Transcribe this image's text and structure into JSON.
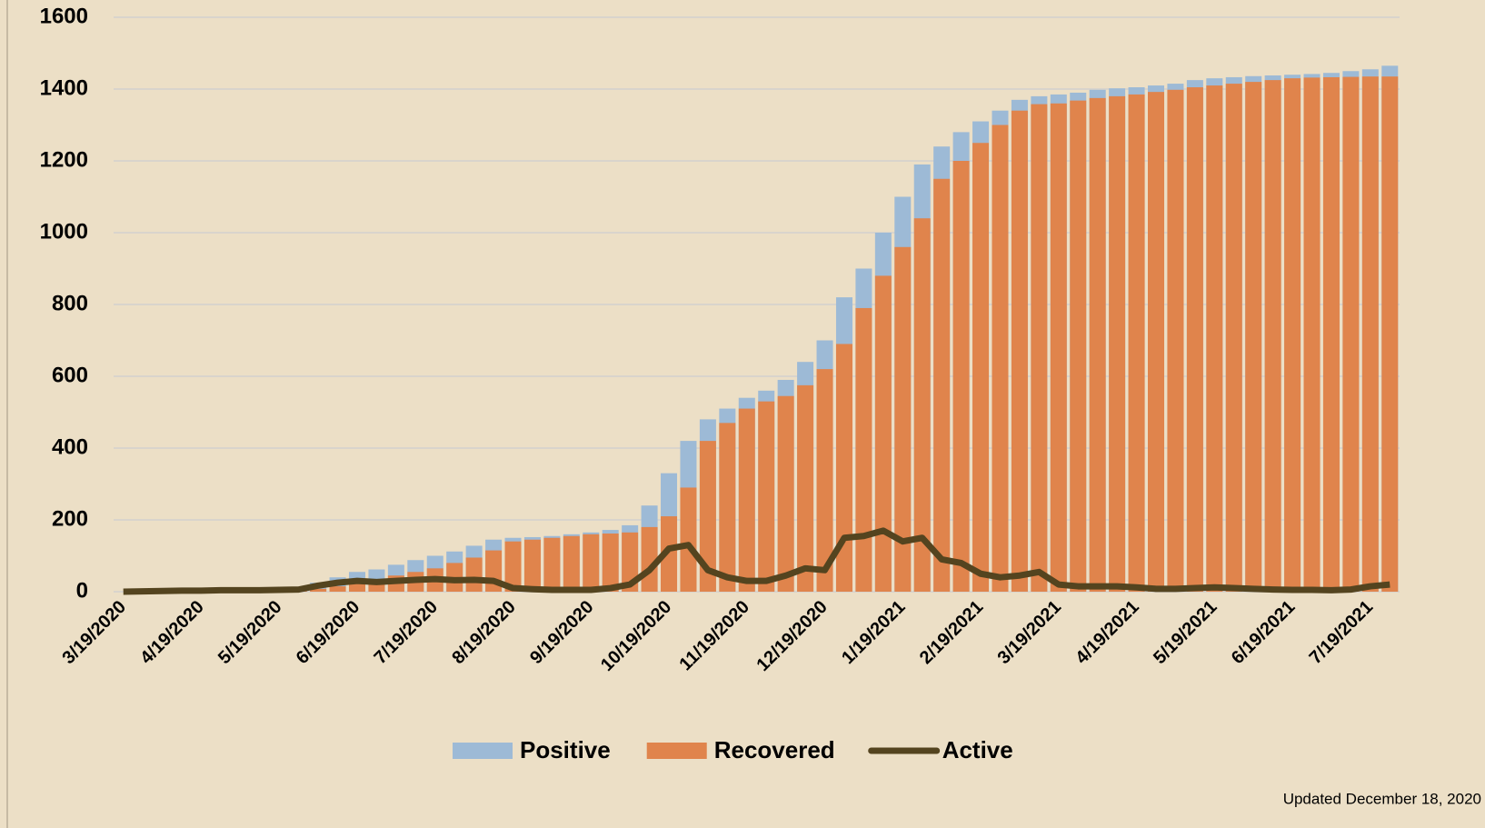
{
  "chart_data": {
    "type": "bar_line",
    "categories": [
      "3/19/2020",
      null,
      null,
      null,
      "4/19/2020",
      null,
      null,
      null,
      "5/19/2020",
      null,
      null,
      null,
      "6/19/2020",
      null,
      null,
      null,
      "7/19/2020",
      null,
      null,
      null,
      "8/19/2020",
      null,
      null,
      null,
      "9/19/2020",
      null,
      null,
      null,
      "10/19/2020",
      null,
      null,
      null,
      "11/19/2020",
      null,
      null,
      null,
      "12/19/2020",
      null,
      null,
      null,
      "1/19/2021",
      null,
      null,
      null,
      "2/19/2021",
      null,
      null,
      null,
      "3/19/2021",
      null,
      null,
      null,
      "4/19/2021",
      null,
      null,
      null,
      "5/19/2021",
      null,
      null,
      null,
      "6/19/2021",
      null,
      null,
      null,
      "7/19/2021",
      null
    ],
    "series": [
      {
        "name": "Positive",
        "color": "#9dbad6",
        "kind": "bar",
        "values": [
          0,
          1,
          2,
          3,
          5,
          6,
          7,
          8,
          10,
          12,
          25,
          40,
          55,
          62,
          75,
          88,
          100,
          112,
          128,
          145,
          150,
          152,
          155,
          160,
          165,
          172,
          185,
          240,
          330,
          420,
          480,
          510,
          540,
          560,
          590,
          640,
          700,
          820,
          900,
          1000,
          1100,
          1190,
          1240,
          1280,
          1310,
          1340,
          1370,
          1380,
          1385,
          1390,
          1398,
          1402,
          1405,
          1410,
          1415,
          1425,
          1430,
          1433,
          1436,
          1438,
          1440,
          1442,
          1445,
          1450,
          1455,
          1465
        ]
      },
      {
        "name": "Recovered",
        "color": "#e0844c",
        "kind": "bar",
        "values": [
          0,
          0,
          0,
          0,
          2,
          2,
          3,
          4,
          5,
          6,
          8,
          15,
          25,
          35,
          45,
          55,
          65,
          80,
          95,
          115,
          140,
          145,
          150,
          155,
          160,
          162,
          165,
          180,
          210,
          290,
          420,
          470,
          510,
          530,
          545,
          575,
          620,
          690,
          790,
          880,
          960,
          1040,
          1150,
          1200,
          1250,
          1300,
          1340,
          1358,
          1360,
          1368,
          1375,
          1380,
          1385,
          1392,
          1398,
          1405,
          1410,
          1415,
          1420,
          1425,
          1430,
          1432,
          1433,
          1434,
          1435,
          1435
        ]
      },
      {
        "name": "Active",
        "color": "#54441f",
        "kind": "line",
        "values": [
          0,
          1,
          2,
          3,
          3,
          4,
          4,
          4,
          5,
          6,
          17,
          25,
          30,
          27,
          30,
          33,
          35,
          32,
          33,
          30,
          10,
          7,
          5,
          5,
          5,
          10,
          20,
          60,
          120,
          130,
          60,
          40,
          30,
          30,
          45,
          65,
          60,
          150,
          155,
          170,
          140,
          150,
          90,
          80,
          50,
          40,
          45,
          55,
          20,
          15,
          15,
          15,
          12,
          8,
          8,
          10,
          12,
          10,
          8,
          6,
          5,
          5,
          4,
          6,
          15,
          20
        ]
      }
    ],
    "ylim": [
      0,
      1600
    ],
    "yticks": [
      0,
      200,
      400,
      600,
      800,
      1000,
      1200,
      1400,
      1600
    ],
    "grid": true,
    "legend": "bottom",
    "note": "Updated December 18, 2020"
  }
}
